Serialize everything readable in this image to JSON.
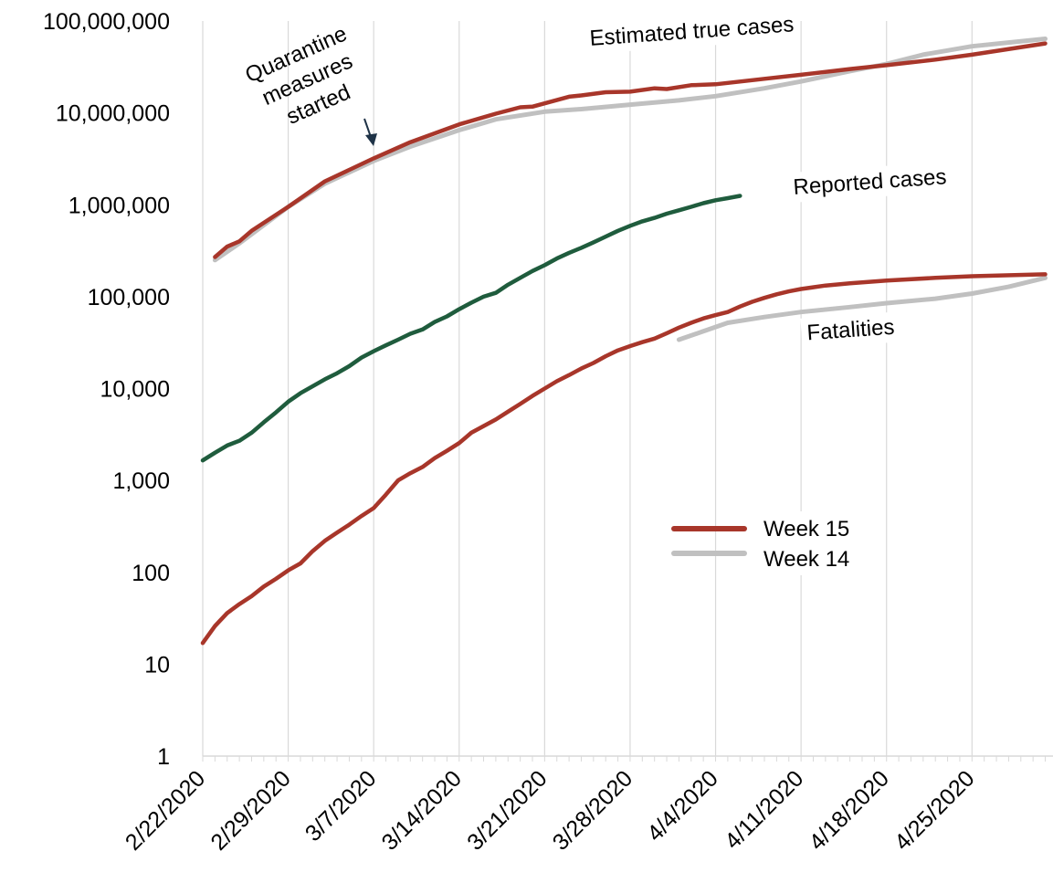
{
  "chart_data": {
    "type": "line",
    "title": "",
    "xlabel": "",
    "ylabel": "",
    "yscale": "log",
    "ylim": [
      1,
      100000000
    ],
    "xlim": [
      "2/22/2020",
      "5/1/2020"
    ],
    "grid": {
      "x": true,
      "y": false
    },
    "y_tick_labels": [
      "1",
      "10",
      "100",
      "1,000",
      "10,000",
      "100,000",
      "1,000,000",
      "10,000,000",
      "100,000,000"
    ],
    "x_tick_labels": [
      "2/22/2020",
      "2/29/2020",
      "3/7/2020",
      "3/14/2020",
      "3/21/2020",
      "3/28/2020",
      "4/4/2020",
      "4/11/2020",
      "4/18/2020",
      "4/25/2020"
    ],
    "legend": {
      "position": "center-right",
      "entries": [
        {
          "label": "Week 15",
          "color": "#a8362a"
        },
        {
          "label": "Week 14",
          "color": "#c0c0c0"
        }
      ]
    },
    "annotations": {
      "true_cases": "Estimated true cases",
      "reported": "Reported cases",
      "fatalities": "Fatalities",
      "quarantine": [
        "Quarantine",
        "measures",
        "started"
      ]
    },
    "series": [
      {
        "name": "Week 14",
        "group": "true_cases",
        "color": "#c0c0c0",
        "points": [
          [
            "2/23/2020",
            250000
          ],
          [
            "2/25/2020",
            380000
          ],
          [
            "2/29/2020",
            950000
          ],
          [
            "3/3/2020",
            1700000
          ],
          [
            "3/7/2020",
            3000000
          ],
          [
            "3/10/2020",
            4300000
          ],
          [
            "3/14/2020",
            6500000
          ],
          [
            "3/17/2020",
            8500000
          ],
          [
            "3/21/2020",
            10300000
          ],
          [
            "3/24/2020",
            11000000
          ],
          [
            "3/28/2020",
            12300000
          ],
          [
            "4/1/2020",
            13700000
          ],
          [
            "4/4/2020",
            15200000
          ],
          [
            "4/8/2020",
            18500000
          ],
          [
            "4/11/2020",
            22000000
          ],
          [
            "4/15/2020",
            28500000
          ],
          [
            "4/18/2020",
            34000000
          ],
          [
            "4/21/2020",
            43000000
          ],
          [
            "4/25/2020",
            53000000
          ],
          [
            "5/1/2020",
            64000000
          ]
        ]
      },
      {
        "name": "Week 15",
        "group": "true_cases",
        "color": "#a8362a",
        "points": [
          [
            "2/23/2020",
            270000
          ],
          [
            "2/24/2020",
            350000
          ],
          [
            "2/25/2020",
            400000
          ],
          [
            "2/26/2020",
            520000
          ],
          [
            "2/29/2020",
            950000
          ],
          [
            "3/3/2020",
            1800000
          ],
          [
            "3/7/2020",
            3200000
          ],
          [
            "3/10/2020",
            4800000
          ],
          [
            "3/14/2020",
            7500000
          ],
          [
            "3/17/2020",
            9800000
          ],
          [
            "3/19/2020",
            11500000
          ],
          [
            "3/20/2020",
            11700000
          ],
          [
            "3/23/2020",
            15000000
          ],
          [
            "3/24/2020",
            15500000
          ],
          [
            "3/26/2020",
            16800000
          ],
          [
            "3/28/2020",
            17000000
          ],
          [
            "3/30/2020",
            18500000
          ],
          [
            "3/31/2020",
            18200000
          ],
          [
            "4/2/2020",
            20000000
          ],
          [
            "4/4/2020",
            20500000
          ],
          [
            "4/8/2020",
            23500000
          ],
          [
            "4/11/2020",
            26000000
          ],
          [
            "4/15/2020",
            30000000
          ],
          [
            "4/18/2020",
            33000000
          ],
          [
            "4/22/2020",
            38000000
          ],
          [
            "4/25/2020",
            43000000
          ],
          [
            "5/1/2020",
            57000000
          ]
        ]
      },
      {
        "name": "Reported cases",
        "group": "reported",
        "color": "#1f5c3d",
        "points": [
          [
            "2/22/2020",
            1650
          ],
          [
            "2/23/2020",
            2000
          ],
          [
            "2/24/2020",
            2400
          ],
          [
            "2/25/2020",
            2700
          ],
          [
            "2/26/2020",
            3300
          ],
          [
            "2/27/2020",
            4300
          ],
          [
            "2/28/2020",
            5500
          ],
          [
            "2/29/2020",
            7200
          ],
          [
            "3/1/2020",
            8900
          ],
          [
            "3/3/2020",
            12600
          ],
          [
            "3/4/2020",
            14700
          ],
          [
            "3/5/2020",
            17500
          ],
          [
            "3/6/2020",
            21700
          ],
          [
            "3/7/2020",
            25500
          ],
          [
            "3/8/2020",
            29500
          ],
          [
            "3/9/2020",
            34000
          ],
          [
            "3/10/2020",
            39500
          ],
          [
            "3/11/2020",
            44000
          ],
          [
            "3/12/2020",
            53000
          ],
          [
            "3/13/2020",
            61000
          ],
          [
            "3/14/2020",
            73000
          ],
          [
            "3/15/2020",
            86000
          ],
          [
            "3/16/2020",
            100000
          ],
          [
            "3/17/2020",
            110000
          ],
          [
            "3/18/2020",
            135000
          ],
          [
            "3/19/2020",
            160000
          ],
          [
            "3/20/2020",
            190000
          ],
          [
            "3/21/2020",
            220000
          ],
          [
            "3/22/2020",
            260000
          ],
          [
            "3/23/2020",
            300000
          ],
          [
            "3/24/2020",
            340000
          ],
          [
            "3/25/2020",
            390000
          ],
          [
            "3/26/2020",
            450000
          ],
          [
            "3/27/2020",
            520000
          ],
          [
            "3/28/2020",
            590000
          ],
          [
            "3/29/2020",
            660000
          ],
          [
            "3/30/2020",
            720000
          ],
          [
            "3/31/2020",
            800000
          ],
          [
            "4/1/2020",
            870000
          ],
          [
            "4/2/2020",
            950000
          ],
          [
            "4/3/2020",
            1040000
          ],
          [
            "4/4/2020",
            1120000
          ],
          [
            "4/5/2020",
            1180000
          ],
          [
            "4/6/2020",
            1250000
          ]
        ]
      },
      {
        "name": "Week 14",
        "group": "fatalities",
        "color": "#c0c0c0",
        "points": [
          [
            "4/1/2020",
            34000
          ],
          [
            "4/3/2020",
            42000
          ],
          [
            "4/5/2020",
            52000
          ],
          [
            "4/8/2020",
            60000
          ],
          [
            "4/11/2020",
            68000
          ],
          [
            "4/15/2020",
            77000
          ],
          [
            "4/18/2020",
            85000
          ],
          [
            "4/22/2020",
            95000
          ],
          [
            "4/25/2020",
            108000
          ],
          [
            "4/28/2020",
            128000
          ],
          [
            "5/1/2020",
            160000
          ]
        ]
      },
      {
        "name": "Week 15",
        "group": "fatalities",
        "color": "#a8362a",
        "points": [
          [
            "2/22/2020",
            17
          ],
          [
            "2/23/2020",
            26
          ],
          [
            "2/24/2020",
            36
          ],
          [
            "2/25/2020",
            45
          ],
          [
            "2/26/2020",
            55
          ],
          [
            "2/27/2020",
            70
          ],
          [
            "2/28/2020",
            85
          ],
          [
            "2/29/2020",
            105
          ],
          [
            "3/1/2020",
            125
          ],
          [
            "3/2/2020",
            170
          ],
          [
            "3/3/2020",
            220
          ],
          [
            "3/4/2020",
            270
          ],
          [
            "3/5/2020",
            330
          ],
          [
            "3/6/2020",
            410
          ],
          [
            "3/7/2020",
            500
          ],
          [
            "3/8/2020",
            700
          ],
          [
            "3/9/2020",
            1000
          ],
          [
            "3/10/2020",
            1200
          ],
          [
            "3/11/2020",
            1400
          ],
          [
            "3/12/2020",
            1750
          ],
          [
            "3/13/2020",
            2100
          ],
          [
            "3/14/2020",
            2550
          ],
          [
            "3/15/2020",
            3300
          ],
          [
            "3/16/2020",
            3900
          ],
          [
            "3/17/2020",
            4600
          ],
          [
            "3/18/2020",
            5600
          ],
          [
            "3/19/2020",
            6800
          ],
          [
            "3/20/2020",
            8300
          ],
          [
            "3/21/2020",
            10000
          ],
          [
            "3/22/2020",
            12000
          ],
          [
            "3/23/2020",
            14000
          ],
          [
            "3/24/2020",
            16500
          ],
          [
            "3/25/2020",
            19000
          ],
          [
            "3/26/2020",
            22500
          ],
          [
            "3/27/2020",
            26000
          ],
          [
            "3/28/2020",
            29000
          ],
          [
            "3/29/2020",
            32000
          ],
          [
            "3/30/2020",
            35000
          ],
          [
            "3/31/2020",
            40000
          ],
          [
            "4/1/2020",
            46000
          ],
          [
            "4/2/2020",
            52000
          ],
          [
            "4/3/2020",
            58000
          ],
          [
            "4/4/2020",
            63000
          ],
          [
            "4/5/2020",
            68000
          ],
          [
            "4/6/2020",
            78000
          ],
          [
            "4/7/2020",
            88000
          ],
          [
            "4/8/2020",
            97000
          ],
          [
            "4/9/2020",
            106000
          ],
          [
            "4/10/2020",
            114000
          ],
          [
            "4/11/2020",
            121000
          ],
          [
            "4/13/2020",
            132000
          ],
          [
            "4/15/2020",
            140000
          ],
          [
            "4/18/2020",
            150000
          ],
          [
            "4/22/2020",
            160000
          ],
          [
            "4/25/2020",
            167000
          ],
          [
            "5/1/2020",
            175000
          ]
        ]
      }
    ]
  }
}
